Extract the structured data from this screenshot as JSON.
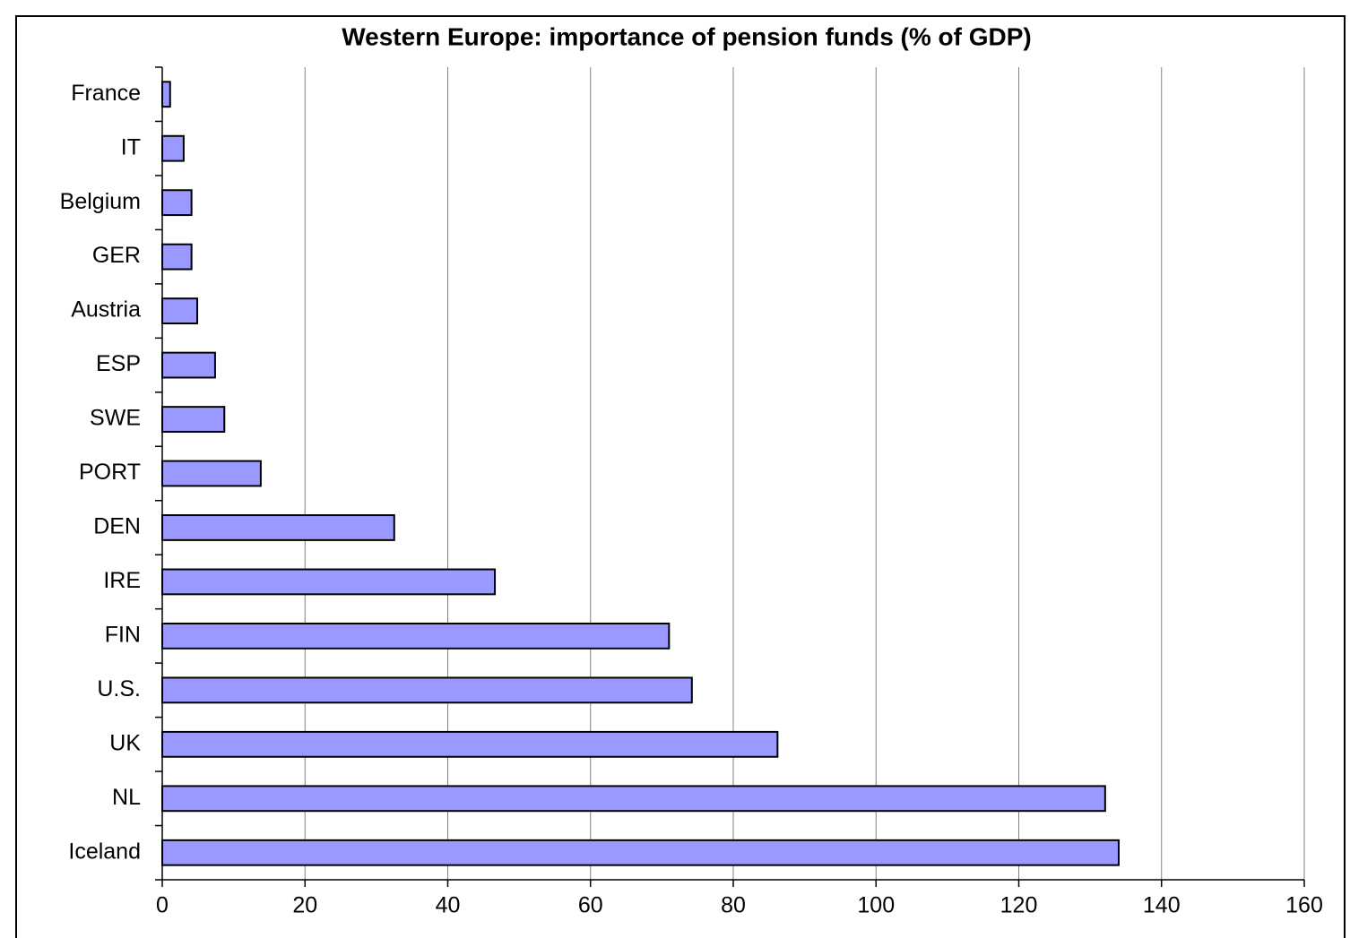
{
  "chart_data": {
    "type": "bar",
    "orientation": "horizontal",
    "title": "Western Europe: importance of pension funds (% of GDP)",
    "categories": [
      "France",
      "IT",
      "Belgium",
      "GER",
      "Austria",
      "ESP",
      "SWE",
      "PORT",
      "DEN",
      "IRE",
      "FIN",
      "U.S.",
      "UK",
      "NL",
      "Iceland"
    ],
    "values": [
      1.1,
      3.0,
      4.1,
      4.1,
      4.9,
      7.4,
      8.7,
      13.8,
      32.5,
      46.6,
      71.0,
      74.2,
      86.2,
      132.1,
      134.0
    ],
    "color": "#9999ff",
    "xlim": [
      0,
      160
    ],
    "xticks": [
      0,
      20,
      40,
      60,
      80,
      100,
      120,
      140,
      160
    ],
    "grid": true
  }
}
